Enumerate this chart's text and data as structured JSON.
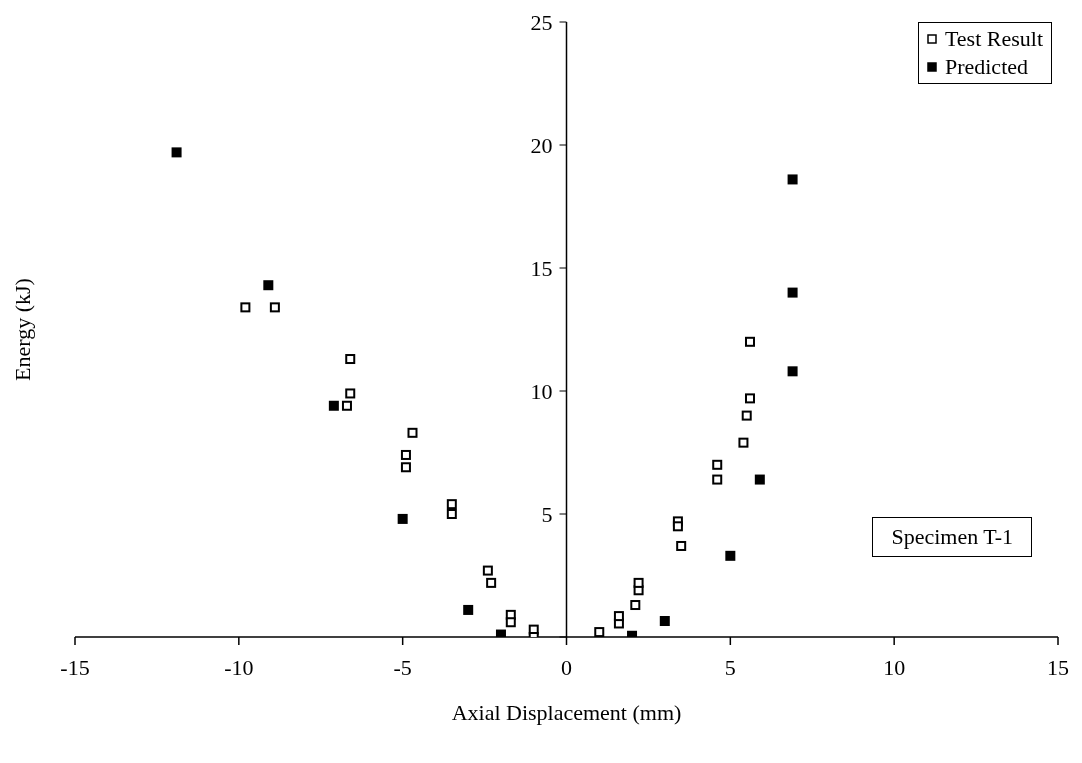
{
  "chart_data": {
    "type": "scatter",
    "xlabel": "Axial Displacement (mm)",
    "ylabel": "Energy (kJ)",
    "xlim": [
      -15,
      15
    ],
    "xticks": [
      -15,
      -10,
      -5,
      0,
      5,
      10,
      15
    ],
    "ylim": [
      0,
      25
    ],
    "yticks": [
      {
        "value": 0,
        "label": null
      },
      5,
      10,
      15,
      20,
      25
    ],
    "grid": false,
    "legend": "top right",
    "marker": "square",
    "annotations": [
      "Specimen T-1"
    ],
    "series": [
      {
        "name": "Test Result",
        "color": "#000000",
        "x": [
          -9.8,
          -8.9,
          -6.6,
          -6.6,
          -6.7,
          -4.7,
          -4.9,
          -4.9,
          -3.5,
          -3.5,
          -2.4,
          -2.3,
          -1.7,
          -1.7,
          -1.0,
          -1.0,
          1.0,
          1.6,
          1.6,
          2.1,
          2.2,
          2.2,
          3.4,
          3.4,
          3.5,
          4.6,
          4.6,
          5.4,
          5.5,
          5.6,
          5.6
        ],
        "values": [
          13.4,
          13.4,
          11.3,
          9.9,
          9.4,
          8.3,
          7.4,
          6.9,
          5.4,
          5.0,
          2.7,
          2.2,
          0.9,
          0.6,
          0.3,
          0.0,
          0.2,
          0.55,
          0.85,
          1.3,
          1.9,
          2.2,
          4.7,
          4.5,
          3.7,
          7.0,
          6.4,
          7.9,
          9.0,
          9.7,
          12.0
        ]
      },
      {
        "name": "Predicted",
        "color": "#000000",
        "x": [
          -11.9,
          -9.1,
          -7.1,
          -5.0,
          -3.0,
          -2.0,
          2.0,
          3.0,
          5.0,
          5.9,
          6.9,
          6.9,
          6.9
        ],
        "values": [
          19.7,
          14.3,
          9.4,
          4.8,
          1.1,
          0.1,
          0.05,
          0.65,
          3.3,
          6.4,
          10.8,
          14.0,
          18.6
        ]
      }
    ]
  }
}
